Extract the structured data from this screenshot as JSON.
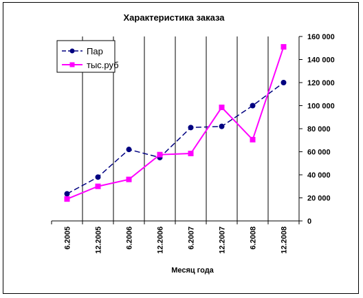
{
  "chart_data": {
    "type": "line",
    "title": "Характеристика заказа",
    "xlabel": "Месяц года",
    "ylabel": "",
    "categories": [
      "6.2005",
      "12.2005",
      "6.2006",
      "12.2006",
      "6.2007",
      "12.2007",
      "6.2008",
      "12.2008"
    ],
    "ylim": [
      0,
      160000
    ],
    "yticks": [
      "0",
      "20 000",
      "40 000",
      "60 000",
      "80 000",
      "100 000",
      "120 000",
      "140 000",
      "160 000"
    ],
    "y_axis_side": "right",
    "grid": "vertical",
    "legend_position": "top-left",
    "series": [
      {
        "name": "Пар",
        "values": [
          23500,
          38000,
          62000,
          55000,
          81000,
          82000,
          100000,
          120000
        ],
        "color": "#000080",
        "line": "dashed",
        "marker": "circle"
      },
      {
        "name": "тыс.руб",
        "values": [
          19000,
          30000,
          36000,
          57500,
          58500,
          98500,
          70500,
          151000
        ],
        "color": "#ff00ff",
        "line": "solid",
        "marker": "square"
      }
    ]
  }
}
